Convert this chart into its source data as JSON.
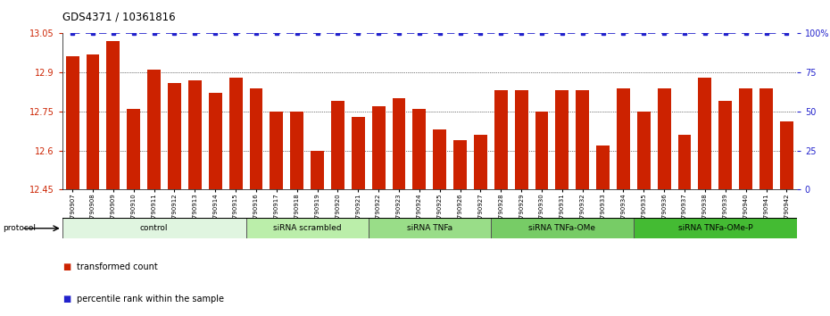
{
  "title": "GDS4371 / 10361816",
  "samples": [
    "GSM790907",
    "GSM790908",
    "GSM790909",
    "GSM790910",
    "GSM790911",
    "GSM790912",
    "GSM790913",
    "GSM790914",
    "GSM790915",
    "GSM790916",
    "GSM790917",
    "GSM790918",
    "GSM790919",
    "GSM790920",
    "GSM790921",
    "GSM790922",
    "GSM790923",
    "GSM790924",
    "GSM790925",
    "GSM790926",
    "GSM790927",
    "GSM790928",
    "GSM790929",
    "GSM790930",
    "GSM790931",
    "GSM790932",
    "GSM790933",
    "GSM790934",
    "GSM790935",
    "GSM790936",
    "GSM790937",
    "GSM790938",
    "GSM790939",
    "GSM790940",
    "GSM790941",
    "GSM790942"
  ],
  "bar_values": [
    12.96,
    12.97,
    13.02,
    12.76,
    12.91,
    12.86,
    12.87,
    12.82,
    12.88,
    12.84,
    12.75,
    12.75,
    12.6,
    12.79,
    12.73,
    12.77,
    12.8,
    12.76,
    12.68,
    12.64,
    12.66,
    12.83,
    12.83,
    12.75,
    12.83,
    12.83,
    12.62,
    12.84,
    12.75,
    12.84,
    12.66,
    12.88,
    12.79,
    12.84,
    12.84,
    12.71
  ],
  "ylim": [
    12.45,
    13.05
  ],
  "yticks_left": [
    12.45,
    12.6,
    12.75,
    12.9,
    13.05
  ],
  "yticks_right": [
    0,
    25,
    50,
    75,
    100
  ],
  "bar_color": "#cc2200",
  "percentile_color": "#2222cc",
  "groups": [
    {
      "label": "control",
      "start": 0,
      "end": 9,
      "color": "#e0f5e0"
    },
    {
      "label": "siRNA scrambled",
      "start": 9,
      "end": 15,
      "color": "#bbeeaa"
    },
    {
      "label": "siRNA TNFa",
      "start": 15,
      "end": 21,
      "color": "#99dd88"
    },
    {
      "label": "siRNA TNFa-OMe",
      "start": 21,
      "end": 28,
      "color": "#77cc66"
    },
    {
      "label": "siRNA TNFa-OMe-P",
      "start": 28,
      "end": 36,
      "color": "#44bb33"
    }
  ],
  "legend_bar_label": "transformed count",
  "legend_pct_label": "percentile rank within the sample",
  "protocol_label": "protocol",
  "background_color": "#ffffff",
  "plot_bg_color": "#ffffff",
  "grid_dotted_color": "#555555",
  "grid_dotted_at": [
    12.6,
    12.75,
    12.9
  ]
}
